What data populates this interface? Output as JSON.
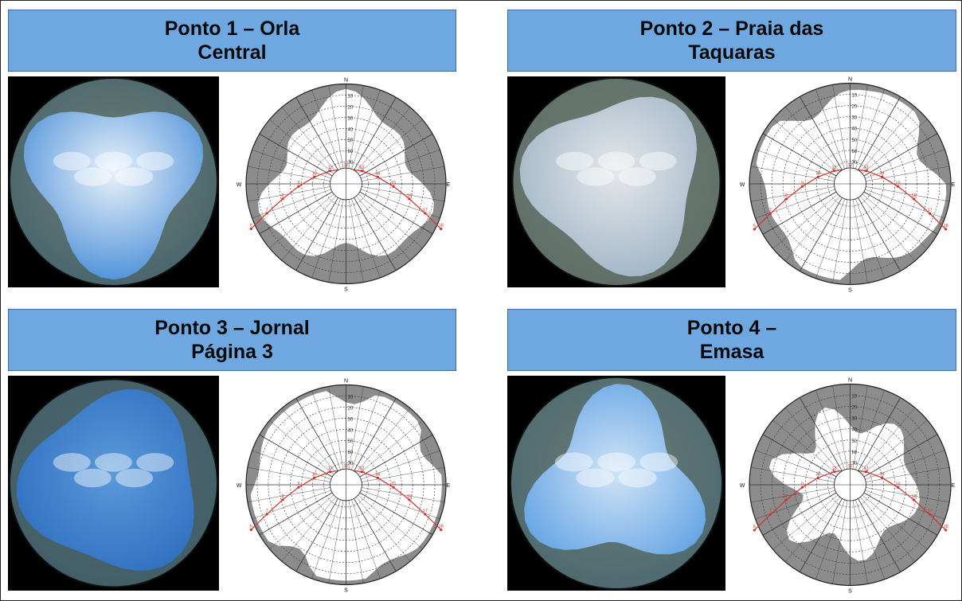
{
  "panels": [
    {
      "title_line1": "Ponto 1 – Orla",
      "title_line2": "Central",
      "photo_icon": "fisheye-sky-photo",
      "sky_top": "#e9f1fa",
      "sky_bottom": "#4a8fd8",
      "compass": {
        "n": "N",
        "s": "S",
        "w": "W",
        "e": "E"
      },
      "sky_view_pct": 0.42
    },
    {
      "title_line1": "Ponto 2 – Praia das",
      "title_line2": "Taquaras",
      "photo_icon": "fisheye-sky-photo",
      "sky_top": "#e4e7ea",
      "sky_bottom": "#9fb4c6",
      "compass": {
        "n": "N",
        "s": "S",
        "w": "W",
        "e": "E"
      },
      "sky_view_pct": 0.55
    },
    {
      "title_line1": "Ponto 3 – Jornal",
      "title_line2": "Página 3",
      "photo_icon": "fisheye-sky-photo",
      "sky_top": "#5c99d9",
      "sky_bottom": "#2e6fc0",
      "compass": {
        "n": "N",
        "s": "S",
        "w": "W",
        "e": "E"
      },
      "sky_view_pct": 0.62
    },
    {
      "title_line1": "Ponto 4 –",
      "title_line2": "Emasa",
      "photo_icon": "fisheye-sky-photo",
      "sky_top": "#cfe3f6",
      "sky_bottom": "#5da0e3",
      "compass": {
        "n": "N",
        "s": "S",
        "w": "W",
        "e": "E"
      },
      "sky_view_pct": 0.3
    }
  ],
  "altitude_labels": [
    "10",
    "20",
    "30",
    "40",
    "50",
    "60",
    "70",
    "80"
  ],
  "sun_hour_labels": [
    "6",
    "7",
    "8",
    "9",
    "10",
    "11",
    "12",
    "13",
    "14",
    "15",
    "16",
    "17",
    "18"
  ],
  "colors": {
    "header_bg": "#6fa8e0",
    "obstruction": "#8c8c8c",
    "sunpath": "#d6302a"
  }
}
